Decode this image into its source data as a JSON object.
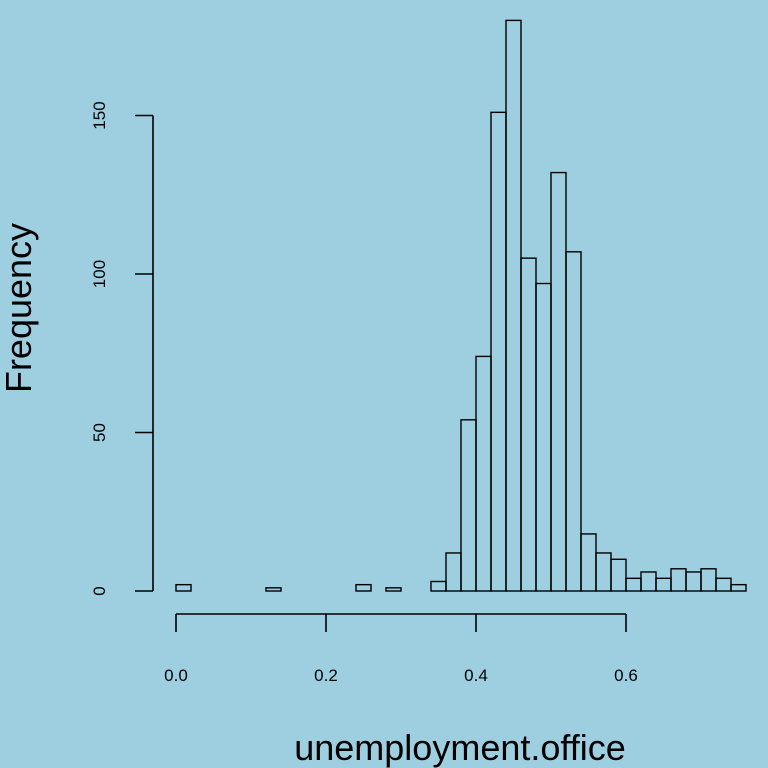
{
  "colors": {
    "background": "#9ecfe0",
    "stroke": "#000000"
  },
  "chart_data": {
    "type": "bar",
    "title": "",
    "xlabel": "unemployment.office",
    "ylabel": "Frequency",
    "bin_width": 0.02,
    "bin_starts": [
      0.0,
      0.02,
      0.04,
      0.06,
      0.08,
      0.1,
      0.12,
      0.14,
      0.16,
      0.18,
      0.2,
      0.22,
      0.24,
      0.26,
      0.28,
      0.3,
      0.32,
      0.34,
      0.36,
      0.38,
      0.4,
      0.42,
      0.44,
      0.46,
      0.48,
      0.5,
      0.52,
      0.54,
      0.56,
      0.58,
      0.6,
      0.62,
      0.64,
      0.66,
      0.68,
      0.7,
      0.72,
      0.74
    ],
    "values": [
      2,
      0,
      0,
      0,
      0,
      0,
      1,
      0,
      0,
      0,
      0,
      0,
      2,
      0,
      1,
      0,
      0,
      3,
      12,
      54,
      74,
      151,
      180,
      105,
      97,
      132,
      107,
      18,
      12,
      10,
      4,
      6,
      4,
      7,
      6,
      7,
      4,
      2
    ],
    "xlim": [
      0,
      0.76
    ],
    "ylim": [
      0,
      180
    ],
    "x_ticks": [
      0.0,
      0.2,
      0.4,
      0.6
    ],
    "x_tick_labels": [
      "0.0",
      "0.2",
      "0.4",
      "0.6"
    ],
    "y_ticks": [
      0,
      50,
      100,
      150
    ],
    "y_tick_labels": [
      "0",
      "50",
      "100",
      "150"
    ],
    "grid": false,
    "legend": "none"
  }
}
